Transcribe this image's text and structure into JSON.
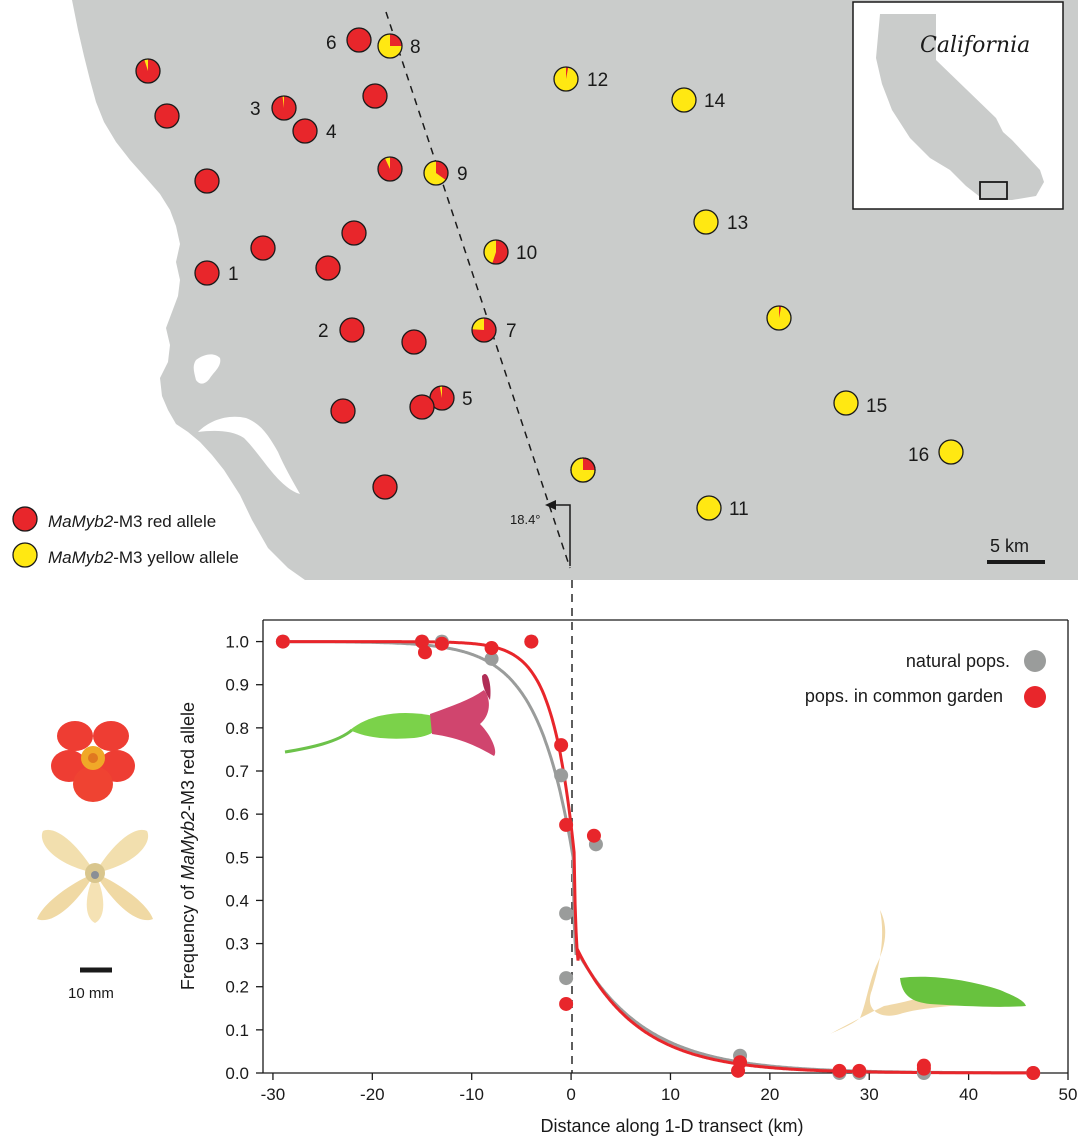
{
  "map": {
    "legend_red_italic": "MaMyb2",
    "legend_red_rest": "-M3 red allele",
    "legend_yellow_italic": "MaMyb2",
    "legend_yellow_rest": "-M3 yellow allele",
    "inset_label": "California",
    "angle_label": "18.4°",
    "scale_label": "5 km",
    "colors": {
      "red": "#e8262b",
      "yellow": "#ffe812",
      "land": "#cacccb",
      "sea": "#ffffff"
    },
    "populations": [
      {
        "label": "1",
        "red_fraction": 1.0
      },
      {
        "label": "2",
        "red_fraction": 1.0
      },
      {
        "label": "3",
        "red_fraction": 0.98
      },
      {
        "label": "4",
        "red_fraction": 1.0
      },
      {
        "label": "5",
        "red_fraction": 0.97
      },
      {
        "label": "6",
        "red_fraction": 1.0
      },
      {
        "label": "7",
        "red_fraction": 0.76
      },
      {
        "label": "8",
        "red_fraction": 0.25
      },
      {
        "label": "9",
        "red_fraction": 0.35
      },
      {
        "label": "10",
        "red_fraction": 0.55
      },
      {
        "label": "11",
        "red_fraction": 0.0
      },
      {
        "label": "12",
        "red_fraction": 0.03
      },
      {
        "label": "13",
        "red_fraction": 0.0
      },
      {
        "label": "14",
        "red_fraction": 0.0
      },
      {
        "label": "15",
        "red_fraction": 0.0
      },
      {
        "label": "16",
        "red_fraction": 0.0
      },
      {
        "label": "",
        "red_fraction": 0.95
      },
      {
        "label": "",
        "red_fraction": 1.0
      },
      {
        "label": "",
        "red_fraction": 1.0
      },
      {
        "label": "",
        "red_fraction": 1.0
      },
      {
        "label": "",
        "red_fraction": 1.0
      },
      {
        "label": "",
        "red_fraction": 1.0
      },
      {
        "label": "",
        "red_fraction": 1.0
      },
      {
        "label": "",
        "red_fraction": 0.93
      },
      {
        "label": "",
        "red_fraction": 1.0
      },
      {
        "label": "",
        "red_fraction": 1.0
      },
      {
        "label": "",
        "red_fraction": 1.0
      },
      {
        "label": "",
        "red_fraction": 1.0
      },
      {
        "label": "",
        "red_fraction": 1.0
      },
      {
        "label": "",
        "red_fraction": 0.25
      },
      {
        "label": "",
        "red_fraction": 0.03
      }
    ]
  },
  "flower_scale_label": "10 mm",
  "chart_data": {
    "type": "scatter",
    "xlabel": "Distance along 1-D transect (km)",
    "ylabel_parts": [
      "Frequency of ",
      "MaMyb2",
      "-M3 red allele"
    ],
    "xlim": [
      -31,
      50
    ],
    "ylim": [
      0,
      1.05
    ],
    "x_ticks": [
      -30,
      -20,
      -10,
      0,
      10,
      20,
      30,
      40,
      50
    ],
    "y_ticks": [
      0.0,
      0.1,
      0.2,
      0.3,
      0.4,
      0.5,
      0.6,
      0.7,
      0.8,
      0.9,
      1.0
    ],
    "y_tick_labels": [
      "0.0",
      "0.1",
      "0.2",
      "0.3",
      "0.4",
      "0.5",
      "0.6",
      "0.7",
      "0.8",
      "0.9",
      "1.0"
    ],
    "legend_position": "top-right",
    "series": [
      {
        "name": "natural pops.",
        "color": "#9a9c9b",
        "points": [
          {
            "x": -29,
            "y": 1.0
          },
          {
            "x": -15,
            "y": 1.0
          },
          {
            "x": -13,
            "y": 1.0
          },
          {
            "x": -8,
            "y": 0.96
          },
          {
            "x": -4,
            "y": 1.0
          },
          {
            "x": -1,
            "y": 0.69
          },
          {
            "x": -0.5,
            "y": 0.37
          },
          {
            "x": -0.5,
            "y": 0.22
          },
          {
            "x": 2.5,
            "y": 0.53
          },
          {
            "x": 17,
            "y": 0.04
          },
          {
            "x": 27,
            "y": 0.0
          },
          {
            "x": 29,
            "y": 0.0
          },
          {
            "x": 35.5,
            "y": 0.0
          },
          {
            "x": 46.5,
            "y": 0.0
          }
        ],
        "cline": {
          "center": 0.2,
          "tail_left": 3.6,
          "tail_right": 4.8
        }
      },
      {
        "name": "pops. in common garden",
        "color": "#e8262b",
        "points": [
          {
            "x": -29,
            "y": 1.0
          },
          {
            "x": -15,
            "y": 1.0
          },
          {
            "x": -14.7,
            "y": 0.975
          },
          {
            "x": -13,
            "y": 0.995
          },
          {
            "x": -8,
            "y": 0.985
          },
          {
            "x": -4,
            "y": 1.0
          },
          {
            "x": -1,
            "y": 0.76
          },
          {
            "x": -0.5,
            "y": 0.575
          },
          {
            "x": 2.3,
            "y": 0.55
          },
          {
            "x": -0.5,
            "y": 0.16
          },
          {
            "x": 16.8,
            "y": 0.005
          },
          {
            "x": 17,
            "y": 0.025
          },
          {
            "x": 27,
            "y": 0.005
          },
          {
            "x": 29,
            "y": 0.005
          },
          {
            "x": 35.5,
            "y": 0.017
          },
          {
            "x": 35.5,
            "y": 0.01
          },
          {
            "x": 46.5,
            "y": 0.0
          }
        ],
        "cline": {
          "center": 0.35,
          "tail_left": 2.2,
          "tail_right": 4.2
        }
      }
    ],
    "reference_line_x": 0
  }
}
